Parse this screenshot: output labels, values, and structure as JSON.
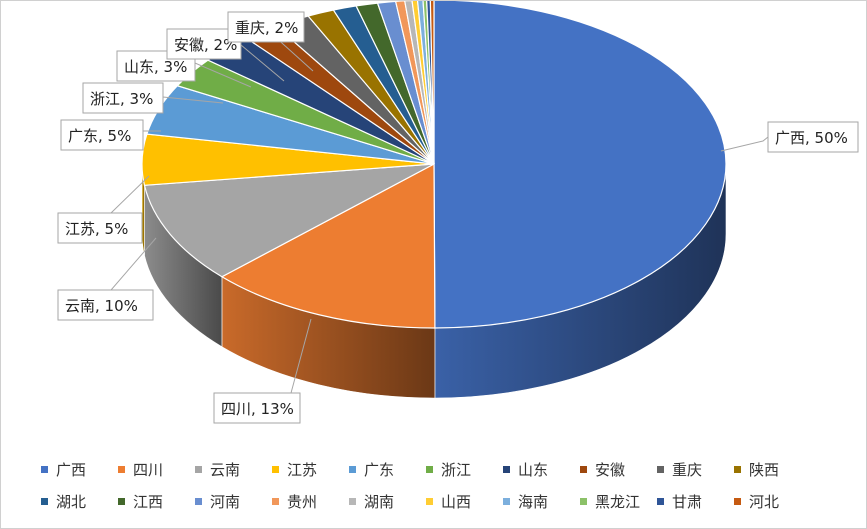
{
  "chart_data": {
    "type": "pie",
    "style": "3d",
    "categories": [
      "广西",
      "四川",
      "云南",
      "江苏",
      "广东",
      "浙江",
      "山东",
      "安徽",
      "重庆",
      "陕西",
      "湖北",
      "江西",
      "河南",
      "贵州",
      "湖南",
      "山西",
      "海南",
      "黑龙江",
      "甘肃",
      "河北"
    ],
    "values": [
      50,
      13,
      10,
      5,
      5,
      3,
      3,
      2,
      2,
      1.5,
      1.3,
      1.2,
      1.0,
      0.5,
      0.4,
      0.3,
      0.3,
      0.2,
      0.2,
      0.2
    ],
    "colors": [
      "#4472C4",
      "#ED7D31",
      "#A5A5A5",
      "#FFC000",
      "#5B9BD5",
      "#70AD47",
      "#264478",
      "#9E480E",
      "#636363",
      "#997300",
      "#255E91",
      "#43682B",
      "#698ED0",
      "#F1975A",
      "#B7B7B7",
      "#FFCD33",
      "#7CAFDD",
      "#8CC168",
      "#2F5597",
      "#C55A11"
    ],
    "data_labels": [
      {
        "category": "广西",
        "text": "广西, 50%"
      },
      {
        "category": "四川",
        "text": "四川, 13%"
      },
      {
        "category": "云南",
        "text": "云南, 10%"
      },
      {
        "category": "江苏",
        "text": "江苏, 5%"
      },
      {
        "category": "广东",
        "text": "广东, 5%"
      },
      {
        "category": "浙江",
        "text": "浙江, 3%"
      },
      {
        "category": "山东",
        "text": "山东, 3%"
      },
      {
        "category": "安徽",
        "text": "安徽, 2%"
      },
      {
        "category": "重庆",
        "text": "重庆, 2%"
      }
    ],
    "legend_position": "bottom",
    "title": ""
  }
}
